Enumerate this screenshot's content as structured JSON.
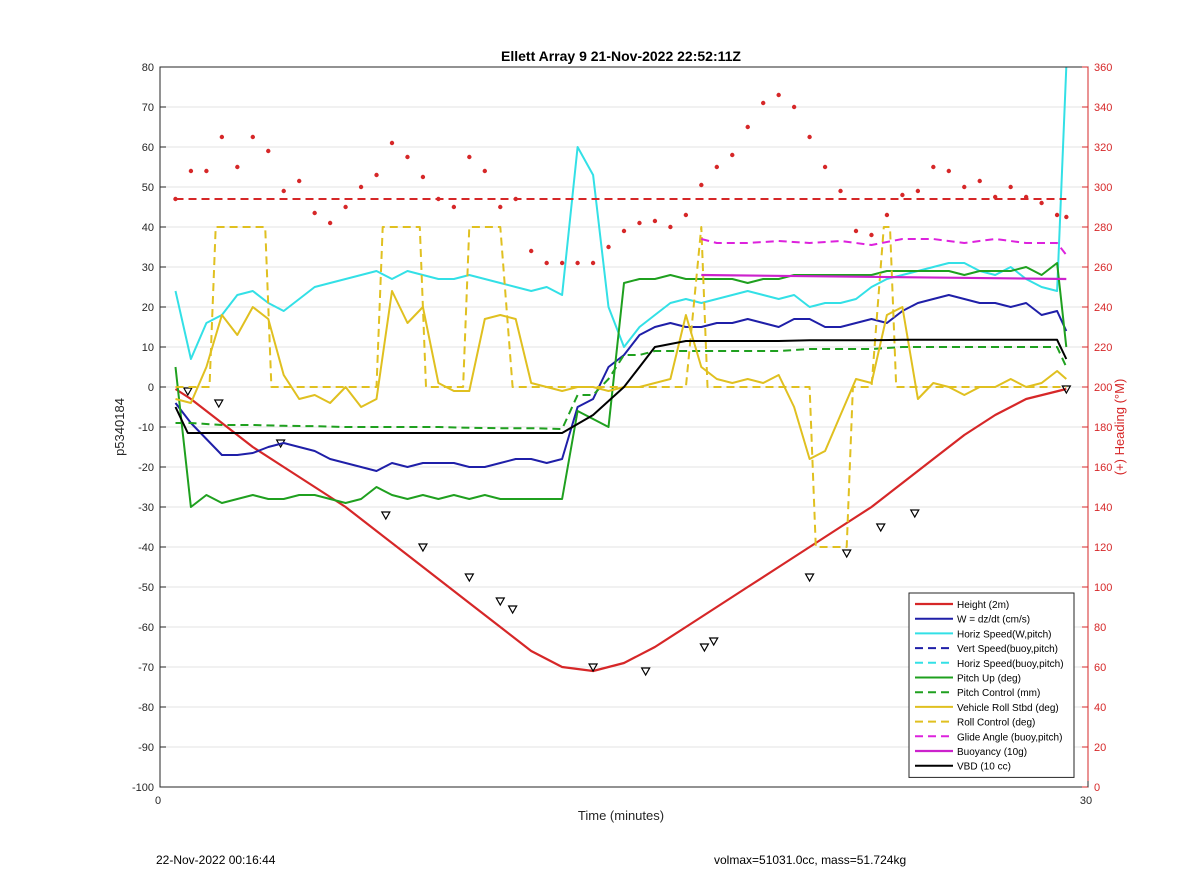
{
  "figure": {
    "footer_left": "22-Nov-2022 00:16:44",
    "footer_right": "volmax=51031.0cc, mass=51.724kg"
  },
  "chart_data": {
    "type": "line",
    "title": "Ellett Array 9 21-Nov-2022 22:52:11Z",
    "xlabel": "Time (minutes)",
    "ylabel": "p5340184",
    "ylabel_right": "(+) Heading (°M)",
    "xlim": [
      0,
      30
    ],
    "ylim": [
      -100,
      80
    ],
    "ylim_right": [
      0,
      360
    ],
    "x_ticks": [
      "0",
      "30"
    ],
    "y_ticks": [
      80,
      70,
      60,
      50,
      40,
      30,
      20,
      10,
      0,
      -10,
      -20,
      -30,
      -40,
      -50,
      -60,
      -70,
      -80,
      -90,
      -100
    ],
    "y_ticks_right": [
      360,
      340,
      320,
      300,
      280,
      260,
      240,
      220,
      200,
      180,
      160,
      140,
      120,
      100,
      80,
      60,
      40,
      20,
      0
    ],
    "grid": true,
    "legend_position": "bottom-right",
    "series": [
      {
        "name": "Height (2m)",
        "color": "#d62728",
        "style": "solid",
        "width": 2.2,
        "marker": "triangle",
        "x": [
          0.5,
          1,
          2,
          3,
          4,
          5,
          6,
          7,
          8,
          9,
          10,
          11,
          12,
          13,
          14,
          15,
          16,
          17,
          18,
          19,
          20,
          21,
          22,
          23,
          24,
          25,
          26,
          27,
          28,
          29.3
        ],
        "y": [
          -0.5,
          -3,
          -9,
          -15,
          -20,
          -25,
          -30,
          -36,
          -42,
          -48,
          -54,
          -60,
          -66,
          -70,
          -71,
          -69,
          -65,
          -60,
          -55,
          -50,
          -45,
          -40,
          -35,
          -30,
          -24,
          -18,
          -12,
          -7,
          -3,
          -0.5
        ],
        "marker_x": [
          0.9,
          1.9,
          3.9,
          7.3,
          8.5,
          10,
          11,
          11.4,
          14,
          15.7,
          17.6,
          17.9,
          21,
          22.2,
          23.3,
          24.4,
          29.3
        ],
        "marker_y": [
          -1,
          -4,
          -14,
          -32,
          -40,
          -47.5,
          -53.5,
          -55.5,
          -70,
          -71,
          -65,
          -63.5,
          -47.5,
          -41.5,
          -35,
          -31.5,
          -0.5
        ]
      },
      {
        "name": "W = dz/dt (cm/s)",
        "color": "#1f1fa8",
        "style": "solid",
        "width": 2,
        "x": [
          0.5,
          1,
          1.5,
          2,
          2.5,
          3,
          3.5,
          4,
          4.5,
          5,
          5.5,
          6,
          6.5,
          7,
          7.5,
          8,
          8.5,
          9,
          9.5,
          10,
          10.5,
          11,
          11.5,
          12,
          12.5,
          13,
          13.5,
          14,
          14.5,
          15,
          15.5,
          16,
          16.5,
          17,
          17.5,
          18,
          18.5,
          19,
          19.5,
          20,
          20.5,
          21,
          21.5,
          22,
          22.5,
          23,
          23.5,
          24,
          24.5,
          25,
          25.5,
          26,
          26.5,
          27,
          27.5,
          28,
          28.5,
          29,
          29.3
        ],
        "y": [
          -4,
          -9,
          -13,
          -17,
          -17,
          -16.5,
          -15,
          -14,
          -15,
          -16,
          -18,
          -19,
          -20,
          -21,
          -19,
          -20,
          -19,
          -19,
          -19,
          -20,
          -20,
          -19,
          -18,
          -18,
          -19,
          -18,
          -5,
          -3,
          5,
          8,
          13,
          15,
          16,
          15,
          15,
          16,
          16,
          17,
          16,
          15,
          17,
          17,
          15,
          15,
          16,
          17,
          16,
          19,
          21,
          22,
          23,
          22,
          21,
          21,
          20,
          21,
          18,
          19,
          14
        ]
      },
      {
        "name": "Horiz Speed(W,pitch)",
        "color": "#33e0e6",
        "style": "solid",
        "width": 2,
        "x": [
          0.5,
          1,
          1.5,
          2,
          2.5,
          3,
          3.5,
          4,
          4.5,
          5,
          5.5,
          6,
          6.5,
          7,
          7.5,
          8,
          8.5,
          9,
          9.5,
          10,
          10.5,
          11,
          11.5,
          12,
          12.5,
          13,
          13.5,
          14,
          14.5,
          15,
          15.5,
          16,
          16.5,
          17,
          17.5,
          18,
          18.5,
          19,
          19.5,
          20,
          20.5,
          21,
          21.5,
          22,
          22.5,
          23,
          23.5,
          24,
          24.5,
          25,
          25.5,
          26,
          26.5,
          27,
          27.5,
          28,
          28.5,
          29,
          29.3
        ],
        "y": [
          24,
          7,
          16,
          18,
          23,
          24,
          21,
          19,
          22,
          25,
          26,
          27,
          28,
          29,
          27,
          29,
          28,
          27,
          27,
          28,
          27,
          26,
          25,
          24,
          25,
          23,
          60,
          53,
          20,
          10,
          15,
          18,
          21,
          22,
          21,
          22,
          23,
          24,
          23,
          22,
          23,
          20,
          21,
          21,
          22,
          25,
          27,
          28,
          29,
          30,
          31,
          31,
          29,
          28,
          30,
          27,
          25,
          24,
          80
        ]
      },
      {
        "name": "Vert Speed(buoy,pitch)",
        "color": "#1f1fa8",
        "style": "dashed",
        "width": 2,
        "x": [],
        "y": []
      },
      {
        "name": "Horiz Speed(buoy,pitch)",
        "color": "#33e0e6",
        "style": "dashed",
        "width": 2,
        "x": [],
        "y": []
      },
      {
        "name": "Pitch Up (deg)",
        "color": "#1fa01f",
        "style": "solid",
        "width": 2,
        "x": [
          0.5,
          1,
          1.5,
          2,
          2.5,
          3,
          3.5,
          4,
          4.5,
          5,
          5.5,
          6,
          6.5,
          7,
          7.5,
          8,
          8.5,
          9,
          9.5,
          10,
          10.5,
          11,
          11.5,
          12,
          12.5,
          13,
          13.5,
          14,
          14.5,
          15,
          15.5,
          16,
          16.5,
          17,
          17.5,
          18,
          18.5,
          19,
          19.5,
          20,
          20.5,
          21,
          21.5,
          22,
          22.5,
          23,
          23.5,
          24,
          24.5,
          25,
          25.5,
          26,
          26.5,
          27,
          27.5,
          28,
          28.5,
          29,
          29.3
        ],
        "y": [
          5,
          -30,
          -27,
          -29,
          -28,
          -27,
          -28,
          -28,
          -27,
          -27,
          -28,
          -29,
          -28,
          -25,
          -27,
          -28,
          -27,
          -28,
          -27,
          -28,
          -27,
          -28,
          -28,
          -28,
          -28,
          -28,
          -6,
          -8,
          -10,
          26,
          27,
          27,
          28,
          27,
          27,
          27,
          27,
          26,
          27,
          27,
          28,
          28,
          28,
          28,
          28,
          28,
          29,
          29,
          29,
          29,
          29,
          28,
          29,
          29,
          29,
          30,
          28,
          31,
          10
        ]
      },
      {
        "name": "Pitch Control (mm)",
        "color": "#1fa01f",
        "style": "dashed",
        "width": 2,
        "x": [
          0.5,
          1,
          2,
          3,
          4,
          5,
          6,
          7,
          8,
          9,
          10,
          11,
          12,
          13,
          13.5,
          14,
          14.5,
          15,
          15.5,
          16,
          17,
          18,
          19,
          20,
          21,
          22,
          23,
          24,
          25,
          26,
          27,
          28,
          29,
          29.3
        ],
        "y": [
          -9,
          -9,
          -9.5,
          -9.5,
          -9.7,
          -9.8,
          -10,
          -10,
          -10,
          -10,
          -10.2,
          -10.3,
          -10.3,
          -10.5,
          -2,
          -2,
          2,
          8,
          8,
          9,
          9,
          9,
          9,
          9,
          9.5,
          9.5,
          9.5,
          10,
          10,
          10,
          10,
          10,
          10,
          5
        ]
      },
      {
        "name": "Vehicle Roll Stbd (deg)",
        "color": "#e0c020",
        "style": "solid",
        "width": 2,
        "x": [
          0.5,
          1,
          1.5,
          2,
          2.5,
          3,
          3.5,
          4,
          4.5,
          5,
          5.5,
          6,
          6.5,
          7,
          7.5,
          8,
          8.5,
          9,
          9.5,
          10,
          10.5,
          11,
          11.5,
          12,
          12.5,
          13,
          13.5,
          14,
          14.5,
          15,
          15.5,
          16,
          16.5,
          17,
          17.5,
          18,
          18.5,
          19,
          19.5,
          20,
          20.5,
          21,
          21.5,
          22,
          22.5,
          23,
          23.5,
          24,
          24.5,
          25,
          25.5,
          26,
          26.5,
          27,
          27.5,
          28,
          28.5,
          29,
          29.3
        ],
        "y": [
          -3,
          -4,
          5,
          18,
          13,
          20,
          17,
          3,
          -3,
          -2,
          -4,
          0,
          -5,
          -3,
          24,
          16,
          20,
          1,
          -1,
          -1,
          17,
          18,
          17,
          1,
          0,
          -1,
          0,
          0,
          -1,
          0,
          0,
          1,
          2,
          18,
          5,
          2,
          1,
          2,
          1,
          3,
          -5,
          -18,
          -16,
          -7,
          2,
          1,
          18,
          20,
          -3,
          1,
          0,
          -2,
          0,
          0,
          2,
          0,
          1,
          4,
          2
        ]
      },
      {
        "name": "Roll Control (deg)",
        "color": "#e0c020",
        "style": "dashed",
        "width": 2,
        "x": [
          0.5,
          1,
          1.6,
          1.8,
          2,
          2.6,
          3.4,
          3.6,
          3.8,
          5,
          6,
          7,
          7.2,
          7.4,
          8,
          8.4,
          8.6,
          9,
          9.8,
          10,
          10.6,
          11,
          11.4,
          11.6,
          12,
          13,
          14,
          15,
          15.5,
          16.5,
          17,
          17.5,
          17.7,
          18,
          19,
          20,
          21,
          21.2,
          21.4,
          22,
          22.2,
          22.4,
          22.8,
          23,
          23.4,
          23.6,
          23.8,
          24,
          24.2,
          25,
          26,
          27,
          28,
          29,
          29.3
        ],
        "y": [
          0,
          0,
          0,
          40,
          40,
          40,
          40,
          0,
          0,
          0,
          0,
          0,
          40,
          40,
          40,
          40,
          0,
          0,
          0,
          40,
          40,
          40,
          0,
          0,
          0,
          0,
          0,
          0,
          0,
          0,
          0,
          40,
          0,
          0,
          0,
          0,
          0,
          -40,
          -40,
          -40,
          -40,
          0,
          0,
          0,
          40,
          40,
          0,
          0,
          0,
          0,
          0,
          0,
          0,
          0,
          0
        ]
      },
      {
        "name": "Glide Angle (buoy,pitch)",
        "color": "#dd22dd",
        "style": "dashed",
        "width": 2,
        "x": [
          17.5,
          18,
          19,
          20,
          21,
          22,
          23,
          24,
          25,
          26,
          27,
          28,
          29,
          29.3
        ],
        "y": [
          37,
          36,
          36,
          36.5,
          36,
          36.5,
          35.5,
          37,
          37,
          36,
          37,
          36,
          36,
          33
        ]
      },
      {
        "name": "Buoyancy (10g)",
        "color": "#cc22cc",
        "style": "solid",
        "width": 2.2,
        "x": [
          17.5,
          29.3
        ],
        "y": [
          28,
          27
        ]
      },
      {
        "name": "VBD (10 cc)",
        "color": "#000000",
        "style": "solid",
        "width": 2,
        "x": [
          0.5,
          0.9,
          1,
          3,
          5,
          7,
          9,
          11,
          13,
          14,
          15,
          15.5,
          16,
          17,
          18,
          19,
          20,
          21,
          22,
          23,
          24,
          25,
          26,
          27,
          28,
          29,
          29.3
        ],
        "y": [
          -5,
          -11.5,
          -11.5,
          -11.5,
          -11.5,
          -11.5,
          -11.5,
          -11.5,
          -11.5,
          -7,
          0,
          5,
          10,
          11.5,
          11.5,
          11.5,
          11.5,
          11.7,
          11.7,
          11.7,
          11.8,
          11.8,
          11.8,
          11.8,
          11.8,
          11.8,
          7
        ]
      },
      {
        "name": "",
        "axis": "right",
        "color": "#d62728",
        "style": "dashed",
        "width": 2,
        "x": [
          0.5,
          29.3
        ],
        "y": [
          294,
          294
        ]
      },
      {
        "name": "",
        "axis": "right",
        "color": "#d62728",
        "style": "dots",
        "x": [
          0.5,
          1,
          1.5,
          2,
          2.5,
          3,
          3.5,
          4,
          4.5,
          5,
          5.5,
          6,
          6.5,
          7,
          7.5,
          8,
          8.5,
          9,
          9.5,
          10,
          10.5,
          11,
          11.5,
          12,
          12.5,
          13,
          13.5,
          14,
          14.5,
          15,
          15.5,
          16,
          16.5,
          17,
          17.5,
          18,
          18.5,
          19,
          19.5,
          20,
          20.5,
          21,
          21.5,
          22,
          22.5,
          23,
          23.5,
          24,
          24.5,
          25,
          25.5,
          26,
          26.5,
          27,
          27.5,
          28,
          28.5,
          29,
          29.3
        ],
        "y": [
          294,
          308,
          308,
          325,
          310,
          325,
          318,
          298,
          303,
          287,
          282,
          290,
          300,
          306,
          322,
          315,
          305,
          294,
          290,
          315,
          308,
          290,
          294,
          268,
          262,
          262,
          262,
          262,
          270,
          278,
          282,
          283,
          280,
          286,
          301,
          310,
          316,
          330,
          342,
          346,
          340,
          325,
          310,
          298,
          278,
          276,
          286,
          296,
          298,
          310,
          308,
          300,
          303,
          295,
          300,
          295,
          292,
          286,
          285
        ]
      }
    ]
  }
}
